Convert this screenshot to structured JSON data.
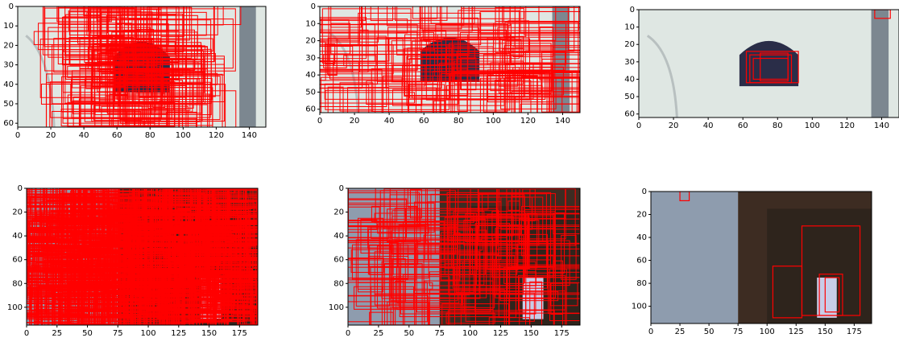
{
  "chart_data": [
    {
      "type": "image",
      "xlim": [
        0,
        150
      ],
      "ylim": [
        62,
        0
      ],
      "xticks": [
        0,
        20,
        40,
        60,
        80,
        100,
        120,
        140
      ],
      "yticks": [
        0,
        10,
        20,
        30,
        40,
        50,
        60
      ]
    },
    {
      "type": "image",
      "xlim": [
        0,
        150
      ],
      "ylim": [
        62,
        0
      ],
      "xticks": [
        0,
        20,
        40,
        60,
        80,
        100,
        120,
        140
      ],
      "yticks": [
        0,
        10,
        20,
        30,
        40,
        50,
        60
      ]
    },
    {
      "type": "image",
      "xlim": [
        0,
        150
      ],
      "ylim": [
        62,
        0
      ],
      "xticks": [
        0,
        20,
        40,
        60,
        80,
        100,
        120,
        140
      ],
      "yticks": [
        0,
        10,
        20,
        30,
        40,
        50,
        60
      ]
    },
    {
      "type": "image",
      "xlim": [
        0,
        190
      ],
      "ylim": [
        115,
        0
      ],
      "xticks": [
        0,
        25,
        50,
        75,
        100,
        125,
        150,
        175
      ],
      "yticks": [
        0,
        20,
        40,
        60,
        80,
        100
      ]
    },
    {
      "type": "image",
      "xlim": [
        0,
        190
      ],
      "ylim": [
        115,
        0
      ],
      "xticks": [
        0,
        25,
        50,
        75,
        100,
        125,
        150,
        175
      ],
      "yticks": [
        0,
        20,
        40,
        60,
        80,
        100
      ]
    },
    {
      "type": "image",
      "xlim": [
        0,
        190
      ],
      "ylim": [
        115,
        0
      ],
      "xticks": [
        0,
        25,
        50,
        75,
        100,
        125,
        150,
        175
      ],
      "yticks": [
        0,
        20,
        40,
        60,
        80,
        100
      ]
    }
  ]
}
